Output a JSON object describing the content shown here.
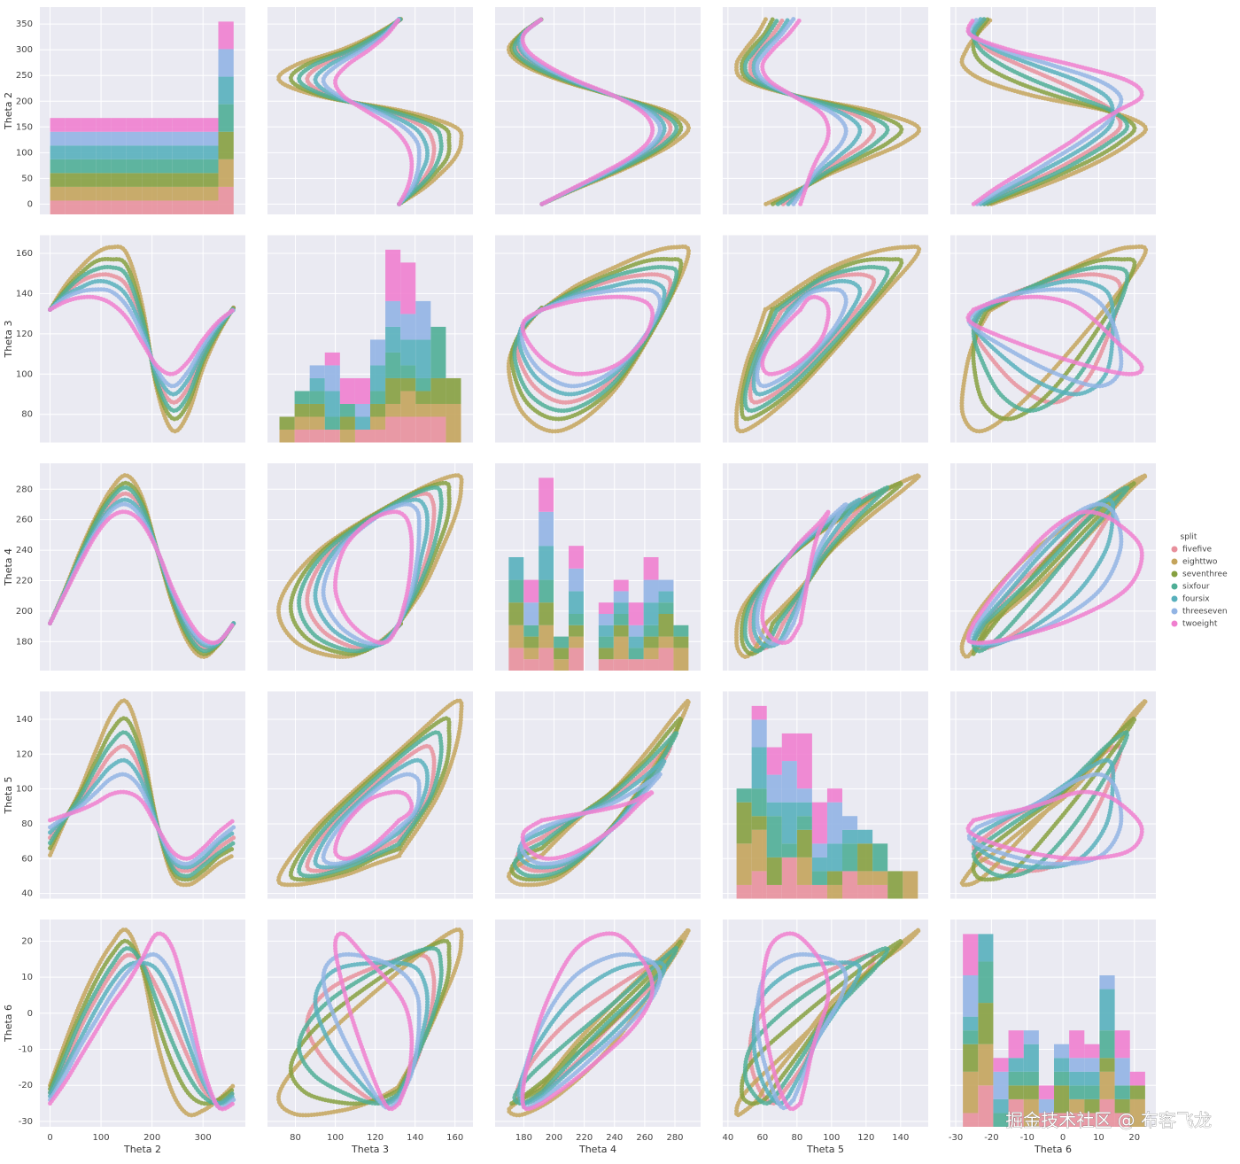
{
  "chart_data": {
    "type": "pairplot",
    "variables": [
      {
        "label": "Theta 2",
        "lim": [
          -20,
          383
        ],
        "xticks": [
          0,
          100,
          200,
          300
        ],
        "yticks": [
          0,
          50,
          100,
          150,
          200,
          250,
          300,
          350
        ]
      },
      {
        "label": "Theta 3",
        "lim": [
          66,
          169
        ],
        "xticks": [
          80,
          100,
          120,
          140,
          160
        ],
        "yticks": [
          80,
          100,
          120,
          140,
          160
        ]
      },
      {
        "label": "Theta 4",
        "lim": [
          161,
          297
        ],
        "xticks": [
          180,
          200,
          220,
          240,
          260,
          280
        ],
        "yticks": [
          180,
          200,
          220,
          240,
          260,
          280
        ]
      },
      {
        "label": "Theta 5",
        "lim": [
          37,
          156
        ],
        "xticks": [
          40,
          60,
          80,
          100,
          120,
          140
        ],
        "yticks": [
          40,
          60,
          80,
          100,
          120,
          140
        ]
      },
      {
        "label": "Theta 6",
        "lim": [
          -31.5,
          26
        ],
        "xticks": [
          -30,
          -20,
          -10,
          0,
          10,
          20
        ],
        "yticks": [
          -30,
          -20,
          -10,
          0,
          10,
          20
        ]
      }
    ],
    "legend_title": "split",
    "legend": "right",
    "grid": true,
    "series": [
      {
        "name": "fivefive",
        "color": "#e8909c",
        "values": [
          [
            0,
            30,
            60,
            90,
            120,
            150,
            180,
            210,
            240,
            270,
            300,
            330,
            360
          ],
          [
            132,
            140,
            146,
            149,
            149,
            144,
            126,
            98,
            86,
            93,
            110,
            123,
            133
          ],
          [
            192,
            214,
            236,
            256,
            271,
            277,
            267,
            240,
            210,
            188,
            176,
            179,
            192
          ],
          [
            72,
            84,
            94,
            107,
            120,
            124,
            109,
            79,
            57,
            53,
            58,
            66,
            72
          ],
          [
            -22,
            -14,
            -4,
            4,
            11,
            16,
            14,
            7,
            -2,
            -12,
            -21,
            -25,
            -22
          ]
        ]
      },
      {
        "name": "eighttwo",
        "color": "#c4a45c",
        "values": [
          [
            0,
            30,
            60,
            90,
            120,
            150,
            180,
            210,
            240,
            270,
            300,
            330,
            360
          ],
          [
            132,
            144,
            153,
            160,
            163,
            160,
            135,
            92,
            72,
            80,
            103,
            120,
            133
          ],
          [
            192,
            215,
            240,
            262,
            280,
            289,
            275,
            240,
            205,
            180,
            170,
            178,
            192
          ],
          [
            62,
            82,
            100,
            122,
            142,
            150,
            125,
            80,
            50,
            45,
            50,
            57,
            62
          ],
          [
            -20,
            -8,
            3,
            12,
            19,
            23,
            13,
            -8,
            -22,
            -28,
            -27,
            -24,
            -20
          ]
        ]
      },
      {
        "name": "seventhree",
        "color": "#86a040",
        "values": [
          [
            0,
            30,
            60,
            90,
            120,
            150,
            180,
            210,
            240,
            270,
            300,
            330,
            360
          ],
          [
            132,
            142,
            150,
            156,
            157,
            154,
            131,
            94,
            78,
            85,
            106,
            121,
            133
          ],
          [
            192,
            214,
            238,
            260,
            276,
            284,
            272,
            240,
            207,
            183,
            172,
            178,
            192
          ],
          [
            66,
            83,
            98,
            116,
            133,
            140,
            119,
            80,
            53,
            48,
            53,
            61,
            66
          ],
          [
            -21,
            -10,
            0,
            9,
            16,
            20,
            13,
            -2,
            -14,
            -22,
            -25,
            -24,
            -21
          ]
        ]
      },
      {
        "name": "sixfour",
        "color": "#4fae96",
        "values": [
          [
            0,
            30,
            60,
            90,
            120,
            150,
            180,
            210,
            240,
            270,
            300,
            330,
            360
          ],
          [
            132,
            141,
            148,
            152,
            153,
            149,
            128,
            96,
            82,
            89,
            108,
            122,
            133
          ],
          [
            192,
            214,
            237,
            258,
            274,
            281,
            269,
            240,
            209,
            185,
            174,
            179,
            192
          ],
          [
            69,
            83,
            96,
            112,
            126,
            132,
            114,
            79,
            55,
            50,
            56,
            63,
            69
          ],
          [
            -22,
            -12,
            -2,
            6,
            13,
            18,
            14,
            3,
            -8,
            -17,
            -23,
            -25,
            -22
          ]
        ]
      },
      {
        "name": "foursix",
        "color": "#58b0bc",
        "values": [
          [
            0,
            30,
            60,
            90,
            120,
            150,
            180,
            210,
            240,
            270,
            300,
            330,
            360
          ],
          [
            132,
            139,
            143,
            146,
            145,
            139,
            123,
            100,
            90,
            97,
            112,
            124,
            132
          ],
          [
            192,
            213,
            235,
            254,
            268,
            273,
            264,
            240,
            212,
            190,
            178,
            179,
            192
          ],
          [
            75,
            84,
            92,
            103,
            113,
            116,
            104,
            79,
            59,
            55,
            60,
            69,
            75
          ],
          [
            -23,
            -15,
            -7,
            1,
            8,
            13,
            14,
            12,
            4,
            -8,
            -19,
            -25,
            -23
          ]
        ]
      },
      {
        "name": "threeseven",
        "color": "#92b4e4",
        "values": [
          [
            0,
            30,
            60,
            90,
            120,
            150,
            180,
            210,
            240,
            270,
            300,
            330,
            360
          ],
          [
            132,
            138,
            141,
            142,
            141,
            134,
            120,
            102,
            94,
            101,
            114,
            125,
            132
          ],
          [
            192,
            213,
            234,
            252,
            266,
            270,
            261,
            240,
            213,
            192,
            180,
            180,
            192
          ],
          [
            78,
            84,
            90,
            98,
            106,
            108,
            99,
            78,
            61,
            57,
            63,
            71,
            78
          ],
          [
            -24,
            -17,
            -9,
            -2,
            5,
            11,
            15,
            16,
            10,
            -3,
            -17,
            -26,
            -24
          ]
        ]
      },
      {
        "name": "twoeight",
        "color": "#f07fcf",
        "values": [
          [
            0,
            30,
            60,
            90,
            120,
            150,
            180,
            210,
            240,
            270,
            300,
            330,
            360
          ],
          [
            132,
            136,
            138,
            138,
            135,
            128,
            116,
            104,
            100,
            106,
            117,
            126,
            132
          ],
          [
            192,
            212,
            232,
            250,
            262,
            265,
            258,
            240,
            215,
            195,
            182,
            180,
            192
          ],
          [
            82,
            85,
            88,
            92,
            97,
            98,
            93,
            78,
            64,
            60,
            66,
            75,
            82
          ],
          [
            -25,
            -19,
            -12,
            -5,
            2,
            8,
            15,
            22,
            18,
            3,
            -15,
            -26,
            -25
          ]
        ]
      }
    ]
  },
  "watermark": "掘金技术社区 @ 布客飞龙"
}
